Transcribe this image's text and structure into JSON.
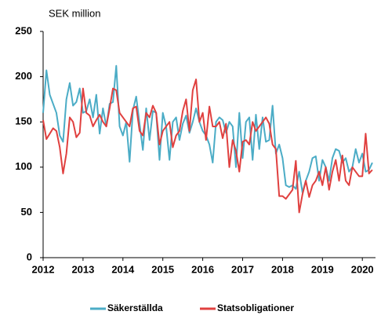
{
  "chart_data": {
    "type": "line",
    "y_label": "SEK million",
    "x": [
      2012,
      2012.083,
      2012.167,
      2012.25,
      2012.333,
      2012.417,
      2012.5,
      2012.583,
      2012.667,
      2012.75,
      2012.833,
      2012.917,
      2013,
      2013.083,
      2013.167,
      2013.25,
      2013.333,
      2013.417,
      2013.5,
      2013.583,
      2013.667,
      2013.75,
      2013.833,
      2013.917,
      2014,
      2014.083,
      2014.167,
      2014.25,
      2014.333,
      2014.417,
      2014.5,
      2014.583,
      2014.667,
      2014.75,
      2014.833,
      2014.917,
      2015,
      2015.083,
      2015.167,
      2015.25,
      2015.333,
      2015.417,
      2015.5,
      2015.583,
      2015.667,
      2015.75,
      2015.833,
      2015.917,
      2016,
      2016.083,
      2016.167,
      2016.25,
      2016.333,
      2016.417,
      2016.5,
      2016.583,
      2016.667,
      2016.75,
      2016.833,
      2016.917,
      2017,
      2017.083,
      2017.167,
      2017.25,
      2017.333,
      2017.417,
      2017.5,
      2017.583,
      2017.667,
      2017.75,
      2017.833,
      2017.917,
      2018,
      2018.083,
      2018.167,
      2018.25,
      2018.333,
      2018.417,
      2018.5,
      2018.583,
      2018.667,
      2018.75,
      2018.833,
      2018.917,
      2019,
      2019.083,
      2019.167,
      2019.25,
      2019.333,
      2019.417,
      2019.5,
      2019.583,
      2019.667,
      2019.75,
      2019.833,
      2019.917,
      2020,
      2020.083,
      2020.167,
      2020.25
    ],
    "series": [
      {
        "name": "Säkerställda",
        "color": "#4bacc6",
        "values": [
          160,
          207,
          180,
          170,
          160,
          135,
          128,
          175,
          193,
          168,
          172,
          187,
          160,
          162,
          175,
          155,
          180,
          137,
          165,
          145,
          170,
          172,
          212,
          145,
          135,
          150,
          106,
          163,
          178,
          148,
          119,
          165,
          130,
          162,
          160,
          108,
          160,
          145,
          108,
          150,
          155,
          130,
          148,
          157,
          138,
          150,
          165,
          150,
          140,
          135,
          125,
          105,
          150,
          155,
          152,
          138,
          150,
          145,
          100,
          160,
          110,
          150,
          155,
          108,
          158,
          120,
          155,
          128,
          130,
          168,
          115,
          125,
          110,
          80,
          78,
          80,
          76,
          95,
          72,
          85,
          95,
          110,
          112,
          85,
          108,
          100,
          85,
          110,
          120,
          118,
          105,
          110,
          95,
          100,
          120,
          105,
          115,
          95,
          97,
          105
        ]
      },
      {
        "name": "Statsobligationer",
        "color": "#e0403f",
        "values": [
          152,
          131,
          137,
          143,
          140,
          122,
          93,
          115,
          155,
          150,
          133,
          138,
          187,
          160,
          157,
          145,
          152,
          158,
          150,
          145,
          165,
          187,
          185,
          160,
          155,
          150,
          145,
          165,
          167,
          140,
          135,
          160,
          155,
          168,
          160,
          125,
          140,
          145,
          150,
          122,
          135,
          140,
          162,
          175,
          140,
          185,
          197,
          150,
          160,
          130,
          167,
          145,
          145,
          150,
          132,
          148,
          100,
          130,
          118,
          95,
          128,
          130,
          125,
          150,
          140,
          145,
          150,
          155,
          148,
          125,
          120,
          68,
          68,
          65,
          70,
          75,
          107,
          50,
          70,
          85,
          67,
          80,
          85,
          95,
          80,
          100,
          75,
          95,
          108,
          85,
          113,
          85,
          80,
          100,
          95,
          90,
          90,
          137,
          93,
          97
        ]
      }
    ],
    "xlim": [
      2012,
      2020.33
    ],
    "xticks": [
      2012,
      2013,
      2014,
      2015,
      2016,
      2017,
      2018,
      2019,
      2020
    ],
    "ylim": [
      0,
      250
    ],
    "yticks": [
      0,
      50,
      100,
      150,
      200,
      250
    ]
  }
}
